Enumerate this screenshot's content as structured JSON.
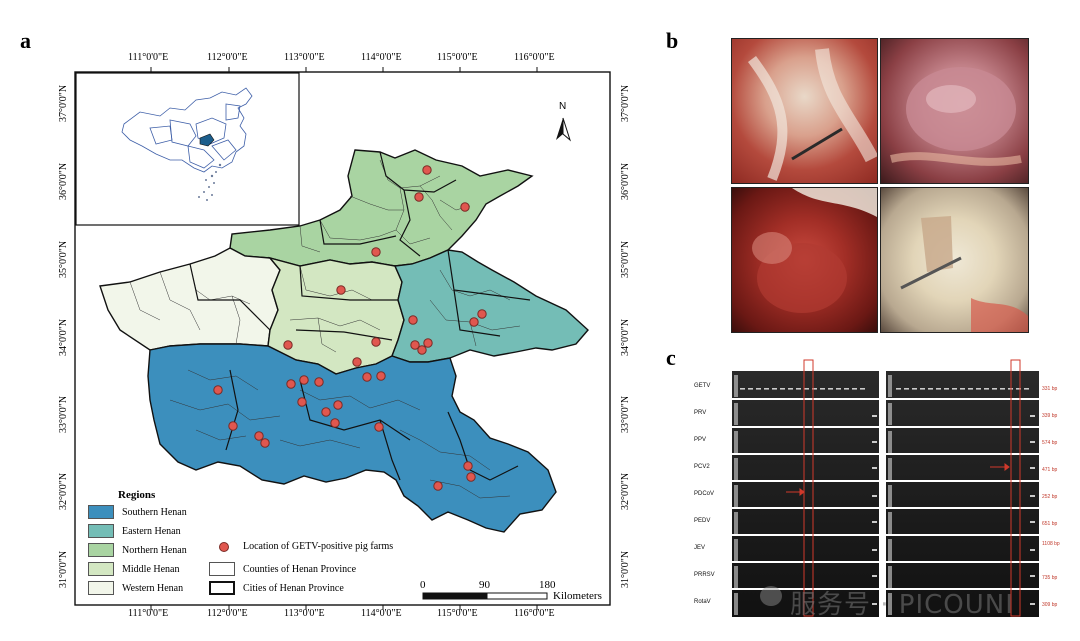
{
  "panel_labels": {
    "a": "a",
    "b": "b",
    "c": "c"
  },
  "map": {
    "lon_ticks": [
      "111°0'0\"E",
      "112°0'0\"E",
      "113°0'0\"E",
      "114°0'0\"E",
      "115°0'0\"E",
      "116°0'0\"E"
    ],
    "lat_ticks": [
      "37°0'0\"N",
      "36°0'0\"N",
      "35°0'0\"N",
      "34°0'0\"N",
      "33°0'0\"N",
      "32°0'0\"N",
      "31°0'0\"N"
    ],
    "north_label": "N",
    "legend": {
      "title": "Regions",
      "regions": [
        {
          "label": "Southern Henan",
          "color": "#3c8fbd"
        },
        {
          "label": "Eastern Henan",
          "color": "#74bdb6"
        },
        {
          "label": "Northern Henan",
          "color": "#a9d4a2"
        },
        {
          "label": "Middle Henan",
          "color": "#d3e7c2"
        },
        {
          "label": "Western Henan",
          "color": "#f2f6ea"
        }
      ],
      "farms_label": "Location of GETV-positive pig farms",
      "counties_label": "Counties of Henan Province",
      "cities_label": "Cities of Henan Province"
    },
    "scale": {
      "ticks": [
        "0",
        "90",
        "180"
      ],
      "unit": "Kilometers"
    }
  },
  "gel": {
    "targets": [
      {
        "name": "GETV",
        "size": "331 bp"
      },
      {
        "name": "PRV",
        "size": "339 bp"
      },
      {
        "name": "PPV",
        "size": "574 bp"
      },
      {
        "name": "PCV2",
        "size": "471 bp"
      },
      {
        "name": "PDCoV",
        "size": "252 bp"
      },
      {
        "name": "PEDV",
        "size": "651 bp"
      },
      {
        "name": "JEV",
        "size": "1108 bp"
      },
      {
        "name": "PRRSV",
        "size": "735 bp"
      },
      {
        "name": "RotaV",
        "size": "309 bp"
      }
    ]
  },
  "watermark": "服务号 · PICOUNI",
  "colors": {
    "border": "#111111",
    "farm_dot": "#e0574f",
    "farm_dot_border": "#7a2a25"
  }
}
